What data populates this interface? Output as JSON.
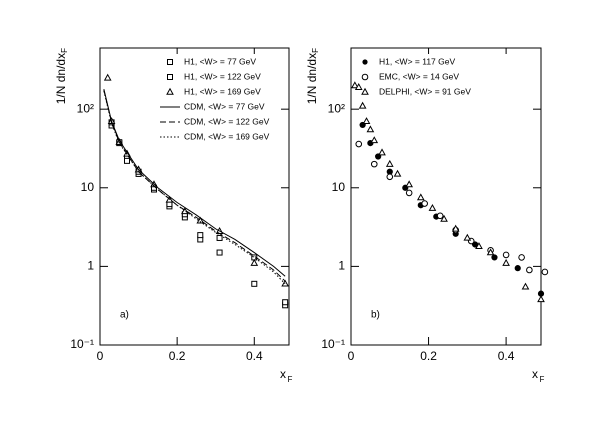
{
  "chart_data": [
    {
      "type": "scatter",
      "ylog": true,
      "xlim": [
        0,
        0.49
      ],
      "ylim": [
        0.1,
        600
      ],
      "xticks": [
        0,
        0.2,
        0.4
      ],
      "yticks": [
        {
          "value": 0.1,
          "label": "10⁻¹"
        },
        1,
        10,
        {
          "value": 100,
          "label": "10²"
        }
      ],
      "xlabel": "x",
      "xlabel_sub": "F",
      "ylabel": "1/N dn/dx",
      "ylabel_sub": "F",
      "annotation": "a)",
      "legend": "upper right",
      "series": [
        {
          "name": "H1, <W> = 77 GeV",
          "marker": "square-open",
          "color": "#000000",
          "x": [
            0.03,
            0.05,
            0.07,
            0.1,
            0.14,
            0.18,
            0.22,
            0.26,
            0.31,
            0.4,
            0.48
          ],
          "values": [
            62,
            37,
            24,
            15,
            9.5,
            5.8,
            4.2,
            2.2,
            1.5,
            0.6,
            0.32
          ]
        },
        {
          "name": "H1, <W> = 122 GeV",
          "marker": "square-open",
          "color": "#000000",
          "x": [
            0.03,
            0.05,
            0.07,
            0.1,
            0.14,
            0.18,
            0.22,
            0.26,
            0.31,
            0.4,
            0.48
          ],
          "values": [
            68,
            38,
            22,
            16,
            10,
            6.2,
            4.6,
            2.5,
            2.3,
            1.3,
            0.35
          ]
        },
        {
          "name": "H1, <W> = 169 GeV",
          "marker": "triangle-open",
          "color": "#000000",
          "x": [
            0.02,
            0.03,
            0.05,
            0.07,
            0.1,
            0.14,
            0.18,
            0.22,
            0.26,
            0.31,
            0.4,
            0.48
          ],
          "values": [
            250,
            70,
            38,
            27,
            17,
            11,
            7,
            5,
            3.8,
            2.8,
            1.1,
            0.6
          ]
        },
        {
          "name": "CDM, <W> = 77 GeV",
          "marker": "line",
          "dash": "solid",
          "color": "#000000",
          "x": [
            0.01,
            0.03,
            0.05,
            0.1,
            0.15,
            0.2,
            0.25,
            0.3,
            0.35,
            0.4,
            0.45,
            0.48
          ],
          "values": [
            180,
            70,
            40,
            17,
            10,
            6.5,
            4.5,
            3.0,
            2.2,
            1.5,
            1.0,
            0.75
          ]
        },
        {
          "name": "CDM, <W> = 122 GeV",
          "marker": "line",
          "dash": "dashed",
          "color": "#000000",
          "x": [
            0.01,
            0.03,
            0.05,
            0.1,
            0.15,
            0.2,
            0.25,
            0.3,
            0.35,
            0.4,
            0.45,
            0.48
          ],
          "values": [
            175,
            68,
            38,
            16,
            9.5,
            6,
            4.2,
            2.8,
            2.0,
            1.35,
            0.9,
            0.65
          ]
        },
        {
          "name": "CDM, <W> = 169 GeV",
          "marker": "line",
          "dash": "dotted",
          "color": "#000000",
          "x": [
            0.01,
            0.03,
            0.05,
            0.1,
            0.15,
            0.2,
            0.25,
            0.3,
            0.35,
            0.4,
            0.45,
            0.48
          ],
          "values": [
            170,
            66,
            37,
            16,
            9.5,
            6,
            4.0,
            2.7,
            1.9,
            1.3,
            0.85,
            0.6
          ]
        }
      ]
    },
    {
      "type": "scatter",
      "ylog": true,
      "xlim": [
        0,
        0.49
      ],
      "ylim": [
        0.1,
        600
      ],
      "xticks": [
        0,
        0.2,
        0.4
      ],
      "yticks": [
        {
          "value": 0.1,
          "label": "10⁻¹"
        },
        1,
        10,
        {
          "value": 100,
          "label": "10²"
        }
      ],
      "xlabel": "x",
      "xlabel_sub": "F",
      "ylabel": "1/N dn/dx",
      "ylabel_sub": "F",
      "annotation": "b)",
      "legend": "upper right",
      "series": [
        {
          "name": "H1, <W> = 117 GeV",
          "marker": "circle-filled",
          "color": "#000000",
          "x": [
            0.03,
            0.05,
            0.07,
            0.1,
            0.14,
            0.18,
            0.22,
            0.27,
            0.32,
            0.37,
            0.43,
            0.49
          ],
          "values": [
            63,
            37,
            25,
            16,
            10,
            6,
            4.3,
            2.6,
            1.9,
            1.3,
            0.95,
            0.45
          ]
        },
        {
          "name": "EMC, <W> = 14 GeV",
          "marker": "circle-open",
          "color": "#000000",
          "x": [
            0.02,
            0.06,
            0.1,
            0.15,
            0.19,
            0.23,
            0.27,
            0.31,
            0.36,
            0.4,
            0.44,
            0.46,
            0.5
          ],
          "values": [
            36,
            20,
            13.8,
            8.6,
            6.3,
            4.4,
            2.9,
            2.1,
            1.6,
            1.4,
            1.3,
            0.9,
            0.85
          ]
        },
        {
          "name": "DELPHI, <W> = 91 GeV",
          "marker": "triangle-open",
          "color": "#000000",
          "x": [
            0.01,
            0.02,
            0.03,
            0.04,
            0.05,
            0.06,
            0.08,
            0.1,
            0.12,
            0.15,
            0.18,
            0.21,
            0.24,
            0.27,
            0.3,
            0.33,
            0.36,
            0.4,
            0.45,
            0.49
          ],
          "values": [
            200,
            190,
            110,
            70,
            55,
            40,
            28,
            20,
            15,
            11,
            7.5,
            5.5,
            4,
            3,
            2.3,
            1.8,
            1.5,
            1.1,
            0.55,
            0.38
          ]
        }
      ]
    }
  ]
}
